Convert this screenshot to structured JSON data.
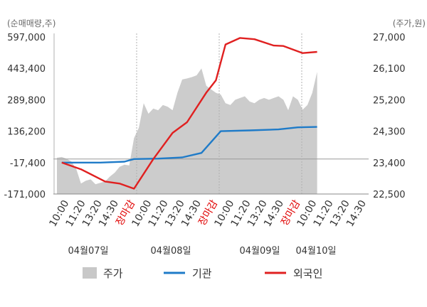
{
  "chart_data": {
    "type": "line",
    "left_axis_unit": "(순매매량,주)",
    "right_axis_unit": "(주가,원)",
    "y_left": {
      "ticks": [
        597000,
        443400,
        289800,
        136200,
        -17400,
        -171000
      ],
      "tick_labels": [
        "597,000",
        "443,400",
        "289,800",
        "136,200",
        "-17,400",
        "-171,000"
      ],
      "range": [
        -171000,
        597000
      ]
    },
    "y_right": {
      "ticks": [
        27000,
        26100,
        25200,
        24300,
        23400,
        22500
      ],
      "tick_labels": [
        "27,000",
        "26,100",
        "25,200",
        "24,300",
        "23,400",
        "22,500"
      ],
      "range": [
        22500,
        27000
      ]
    },
    "x_tick_labels": [
      "10:00",
      "11:20",
      "13:20",
      "14:30",
      "장마감",
      "10:00",
      "11:20",
      "13:20",
      "14:30",
      "장마감",
      "10:00",
      "11:20",
      "13:20",
      "14:30",
      "장마감",
      "10:00",
      "11:20",
      "13:20",
      "14:30"
    ],
    "market_close_label": "장마감",
    "dates": [
      "04월07일",
      "04월08일",
      "04월09일",
      "04월10일"
    ],
    "series": [
      {
        "name": "주가",
        "type": "area",
        "color": "#cccccc",
        "axis": "right",
        "points": [
          [
            0,
            23540
          ],
          [
            1,
            23560
          ],
          [
            2,
            23510
          ],
          [
            3,
            23430
          ],
          [
            4,
            23220
          ],
          [
            5,
            22800
          ],
          [
            6,
            22880
          ],
          [
            7,
            22920
          ],
          [
            8,
            22780
          ],
          [
            9,
            22820
          ],
          [
            10,
            22860
          ],
          [
            11,
            23000
          ],
          [
            12,
            23110
          ],
          [
            13,
            23280
          ],
          [
            14,
            23340
          ],
          [
            15,
            23320
          ],
          [
            16,
            24100
          ],
          [
            17,
            24400
          ],
          [
            18,
            25100
          ],
          [
            19,
            24800
          ],
          [
            20,
            24950
          ],
          [
            21,
            24900
          ],
          [
            22,
            25050
          ],
          [
            23,
            25000
          ],
          [
            24,
            24900
          ],
          [
            25,
            25400
          ],
          [
            26,
            25780
          ],
          [
            27,
            25810
          ],
          [
            28,
            25850
          ],
          [
            29,
            25900
          ],
          [
            30,
            26100
          ],
          [
            31,
            25600
          ],
          [
            32,
            25500
          ],
          [
            33,
            25400
          ],
          [
            34,
            25350
          ],
          [
            35,
            25100
          ],
          [
            36,
            25050
          ],
          [
            37,
            25200
          ],
          [
            38,
            25250
          ],
          [
            39,
            25300
          ],
          [
            40,
            25150
          ],
          [
            41,
            25100
          ],
          [
            42,
            25200
          ],
          [
            43,
            25250
          ],
          [
            44,
            25200
          ],
          [
            45,
            25250
          ],
          [
            46,
            25300
          ],
          [
            47,
            25200
          ],
          [
            48,
            24900
          ],
          [
            49,
            25300
          ],
          [
            50,
            25200
          ],
          [
            51,
            24920
          ],
          [
            52,
            25050
          ],
          [
            53,
            25400
          ],
          [
            54,
            26000
          ]
        ]
      },
      {
        "name": "기관",
        "type": "line",
        "color": "#1f7bc8",
        "axis": "left",
        "points": [
          [
            1,
            -17400
          ],
          [
            9,
            -17400
          ],
          [
            14,
            -13000
          ],
          [
            16,
            0
          ],
          [
            21,
            2000
          ],
          [
            26,
            8000
          ],
          [
            30,
            30000
          ],
          [
            34,
            136200
          ],
          [
            40,
            140000
          ],
          [
            46,
            145000
          ],
          [
            50,
            155000
          ],
          [
            54,
            157000
          ]
        ]
      },
      {
        "name": "외국인",
        "type": "line",
        "color": "#e02020",
        "axis": "left",
        "points": [
          [
            1,
            -17400
          ],
          [
            5,
            -50000
          ],
          [
            10,
            -110000
          ],
          [
            13,
            -120000
          ],
          [
            16,
            -145000
          ],
          [
            20,
            0
          ],
          [
            24,
            128000
          ],
          [
            27,
            180000
          ],
          [
            31,
            325000
          ],
          [
            33,
            385000
          ],
          [
            35,
            560000
          ],
          [
            38,
            592000
          ],
          [
            41,
            586000
          ],
          [
            45,
            555000
          ],
          [
            47,
            553000
          ],
          [
            51,
            518000
          ],
          [
            54,
            524000
          ]
        ]
      }
    ],
    "legend": {
      "placement": "bottom",
      "entries": [
        "주가",
        "기관",
        "외국인"
      ]
    },
    "grid": "vertical day separators and a zero line"
  }
}
